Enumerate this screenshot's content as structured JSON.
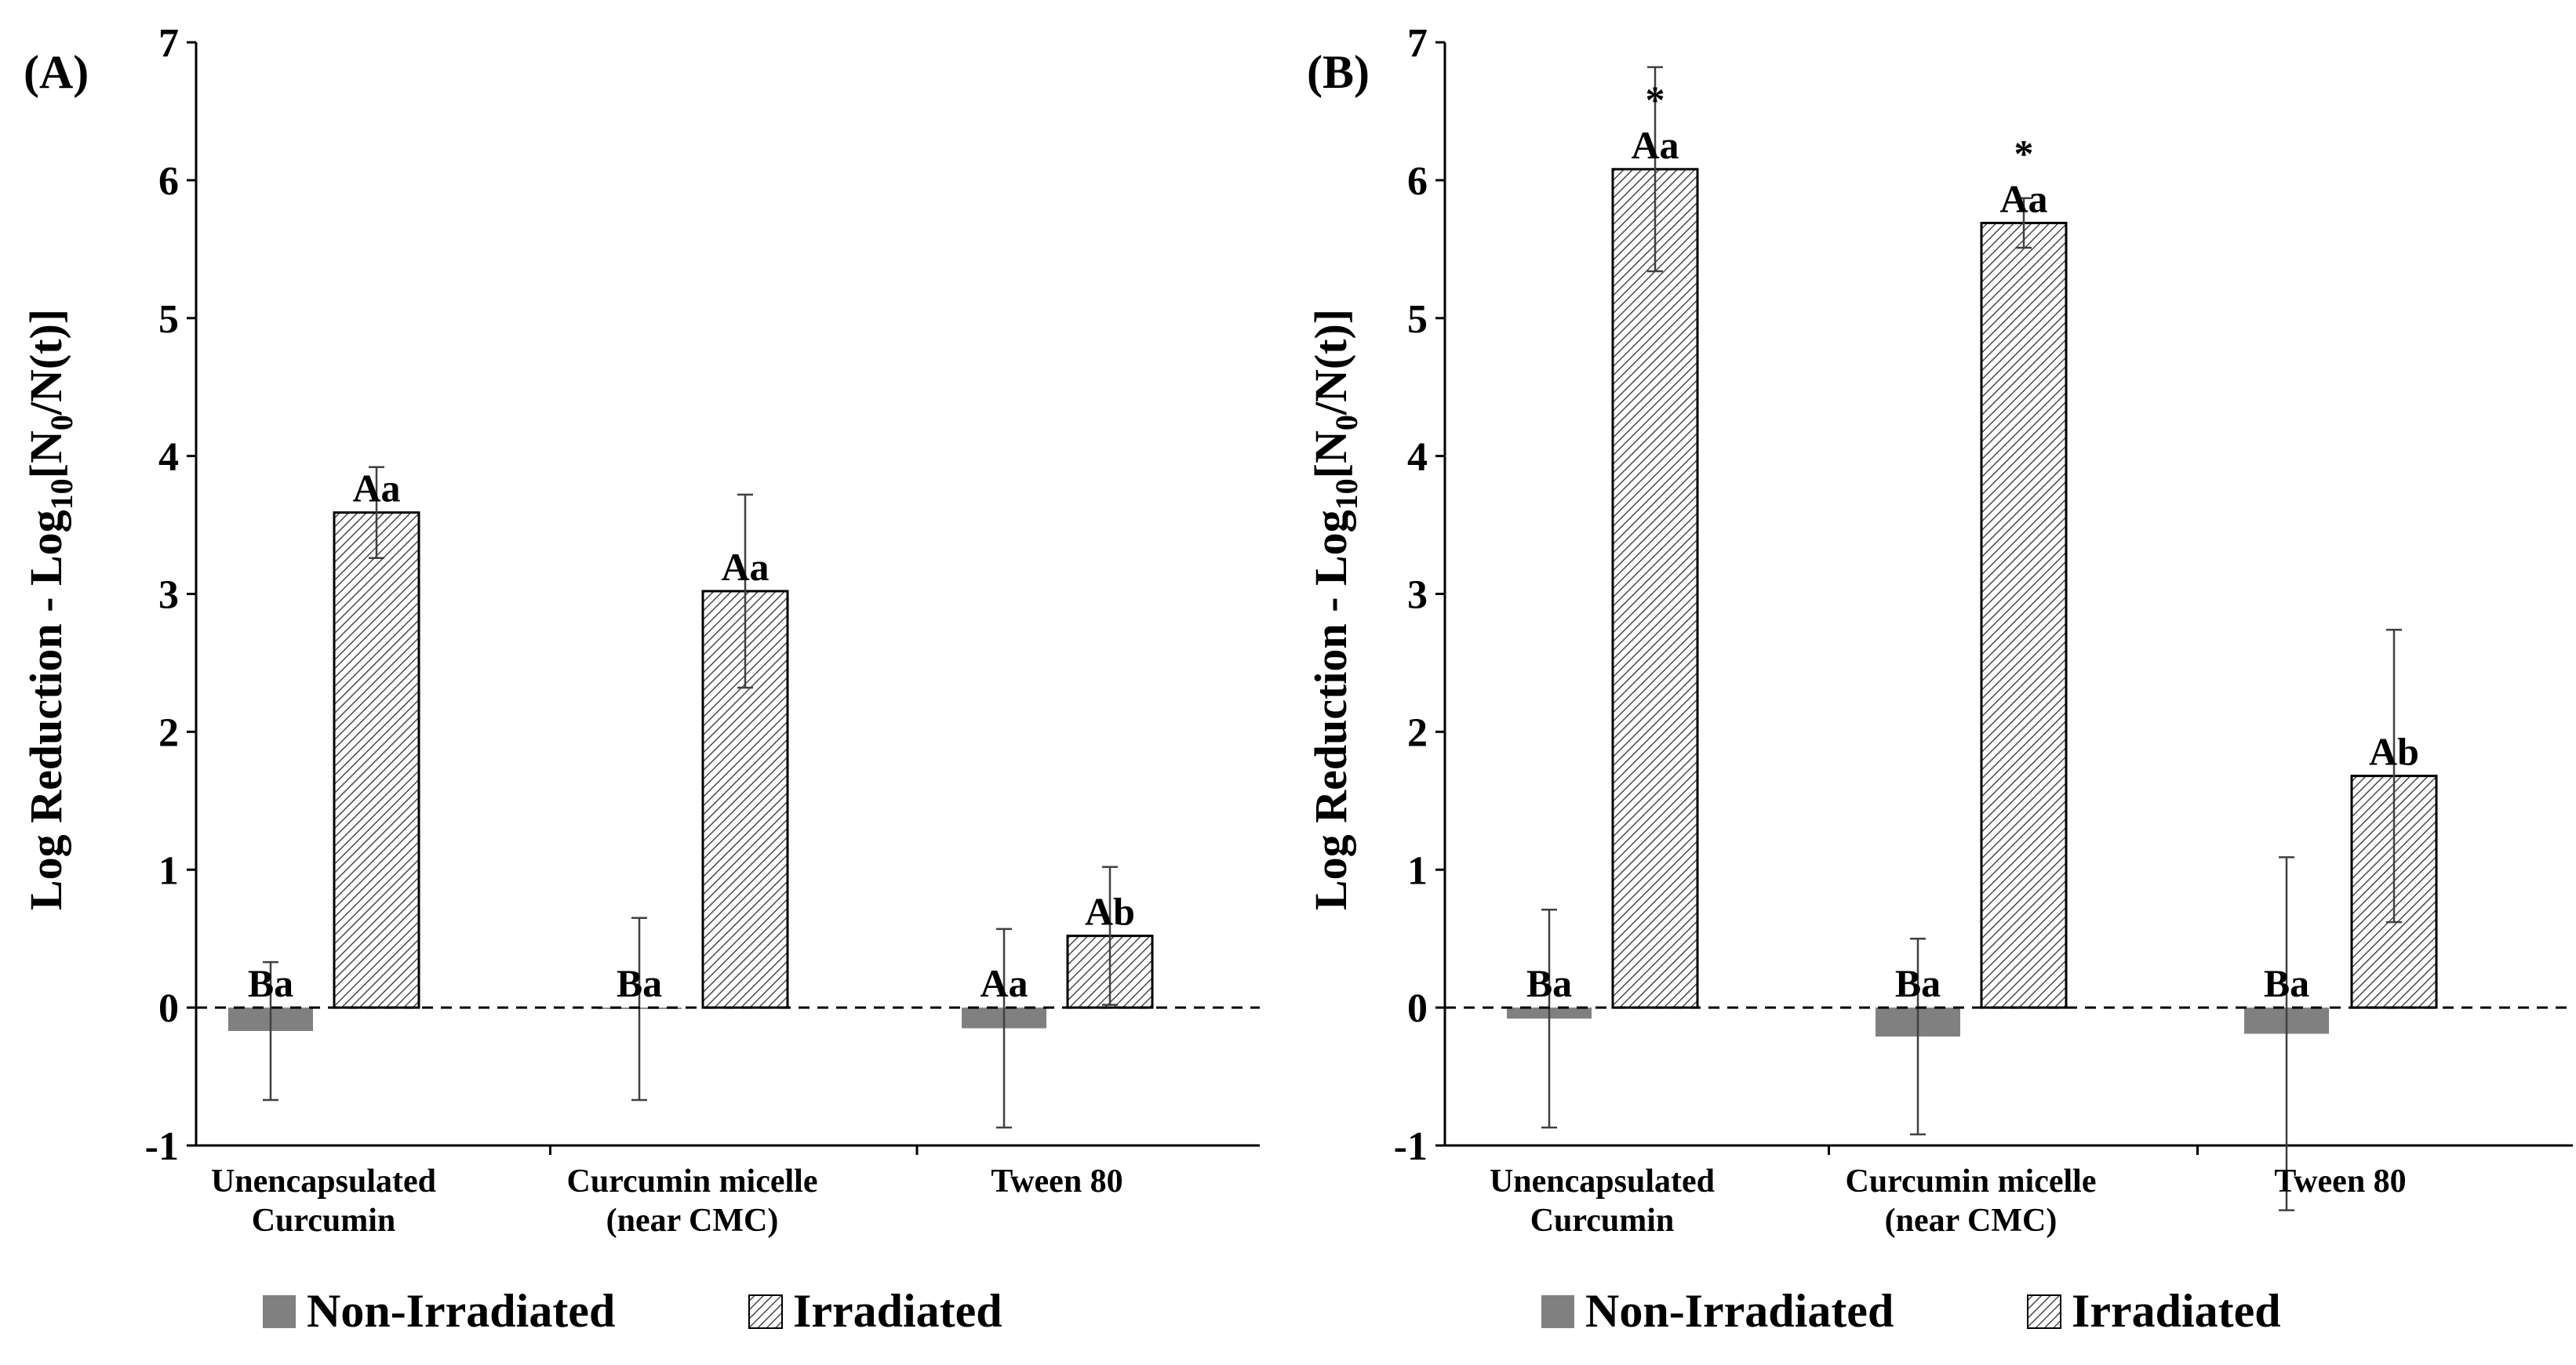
{
  "chart_data": [
    {
      "type": "bar",
      "panel_label": "(A)",
      "ylabel_parts": [
        "Log Reduction - Log",
        "10",
        "[N",
        "0",
        "/N(t)]"
      ],
      "ylim": [
        -1,
        7
      ],
      "yticks": [
        "-1",
        "0",
        "1",
        "2",
        "3",
        "4",
        "5",
        "6",
        "7"
      ],
      "categories": [
        [
          "Unencapsulated",
          "Curcumin"
        ],
        [
          "Curcumin micelle",
          "(near CMC)"
        ],
        [
          "Tween 80"
        ]
      ],
      "series": [
        {
          "name": "Non-Irradiated",
          "values": [
            -0.17,
            -0.01,
            -0.15
          ],
          "errors": [
            0.5,
            0.66,
            0.72
          ],
          "letters": [
            "Ba",
            "Ba",
            "Aa"
          ],
          "stars": [
            "",
            "",
            ""
          ]
        },
        {
          "name": "Irradiated",
          "values": [
            3.59,
            3.02,
            0.52
          ],
          "errors": [
            0.33,
            0.7,
            0.5
          ],
          "letters": [
            "Aa",
            "Aa",
            "Ab"
          ],
          "stars": [
            "",
            "",
            ""
          ]
        }
      ],
      "legend": [
        "Non-Irradiated",
        "Irradiated"
      ],
      "reference_line": 0
    },
    {
      "type": "bar",
      "panel_label": "(B)",
      "ylabel_parts": [
        "Log Reduction - Log",
        "10",
        "[N",
        "0",
        "/N(t)]"
      ],
      "ylim": [
        -1,
        7
      ],
      "yticks": [
        "-1",
        "0",
        "1",
        "2",
        "3",
        "4",
        "5",
        "6",
        "7"
      ],
      "categories": [
        [
          "Unencapsulated",
          "Curcumin"
        ],
        [
          "Curcumin micelle",
          "(near CMC)"
        ],
        [
          "Tween 80"
        ]
      ],
      "series": [
        {
          "name": "Non-Irradiated",
          "values": [
            -0.08,
            -0.21,
            -0.19
          ],
          "errors": [
            0.79,
            0.71,
            1.28
          ],
          "letters": [
            "Ba",
            "Ba",
            "Ba"
          ],
          "stars": [
            "",
            "",
            ""
          ]
        },
        {
          "name": "Irradiated",
          "values": [
            6.08,
            5.69,
            1.68
          ],
          "errors": [
            0.74,
            0.18,
            1.06
          ],
          "letters": [
            "Aa",
            "Aa",
            "Ab"
          ],
          "stars": [
            "*",
            "*",
            ""
          ]
        }
      ],
      "legend": [
        "Non-Irradiated",
        "Irradiated"
      ],
      "reference_line": 0
    }
  ],
  "colors": {
    "non_irradiated": "#808080",
    "hatch": "#5a5a5a",
    "axis": "#000000"
  }
}
